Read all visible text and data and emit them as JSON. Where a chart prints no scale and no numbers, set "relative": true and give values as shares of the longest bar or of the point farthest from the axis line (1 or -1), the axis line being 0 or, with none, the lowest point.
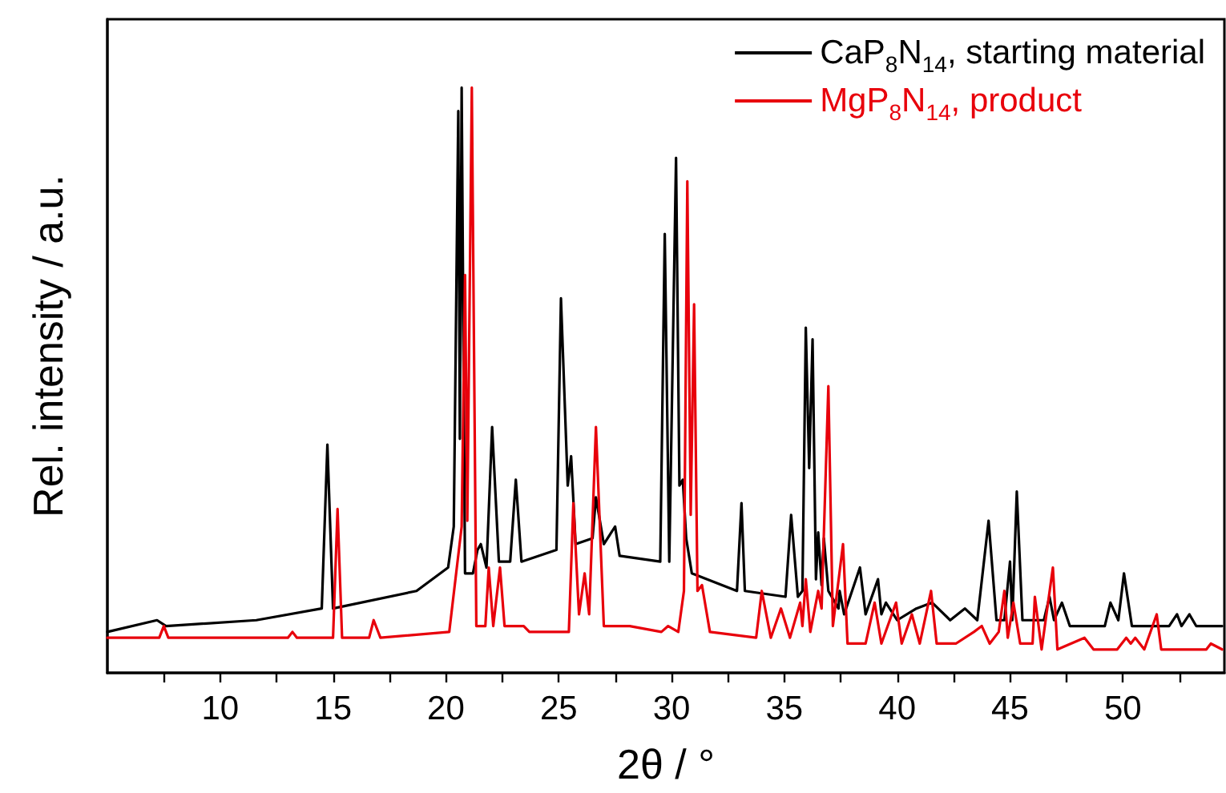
{
  "chart_data": {
    "type": "line",
    "relative": true,
    "xlabel": "2θ / °",
    "ylabel": "Rel. intensity / a.u.",
    "xlim": [
      5,
      54.5
    ],
    "xticks": [
      {
        "value": 7.5,
        "label": null
      },
      10,
      {
        "value": 12.5,
        "label": null
      },
      15,
      {
        "value": 17.5,
        "label": null
      },
      20,
      {
        "value": 22.5,
        "label": null
      },
      25,
      {
        "value": 27.5,
        "label": null
      },
      30,
      {
        "value": 32.5,
        "label": null
      },
      35,
      {
        "value": 37.5,
        "label": null
      },
      40,
      {
        "value": 42.5,
        "label": null
      },
      45,
      {
        "value": 47.5,
        "label": null
      },
      50,
      {
        "value": 52.5,
        "label": null
      }
    ],
    "legend": "top right",
    "marker": "none",
    "line_style": "solid",
    "grid": false,
    "series": [
      {
        "name": "CaP$_{8}$N$_{14}$, starting material",
        "color": "#000000",
        "x": [
          5.0,
          7.2,
          7.6,
          11.6,
          14.5,
          14.75,
          15.0,
          18.7,
          20.1,
          20.35,
          20.55,
          20.62,
          20.7,
          20.85,
          21.2,
          21.4,
          21.55,
          21.8,
          22.05,
          22.35,
          22.85,
          23.1,
          23.35,
          24.9,
          25.1,
          25.4,
          25.55,
          25.75,
          26.5,
          26.65,
          27.0,
          27.5,
          27.7,
          29.5,
          29.7,
          29.9,
          30.2,
          30.35,
          30.5,
          30.65,
          30.9,
          32.9,
          33.1,
          33.25,
          35.05,
          35.3,
          35.6,
          35.8,
          35.95,
          36.1,
          36.25,
          36.4,
          36.5,
          36.65,
          36.75,
          36.95,
          37.4,
          37.45,
          37.65,
          38.35,
          38.6,
          39.15,
          39.3,
          39.5,
          40.0,
          40.85,
          41.55,
          42.35,
          43.0,
          43.55,
          44.05,
          44.4,
          44.75,
          45.0,
          45.1,
          45.3,
          45.55,
          46.5,
          46.75,
          46.95,
          47.3,
          47.65,
          49.2,
          49.45,
          49.8,
          50.05,
          50.4,
          52.05,
          52.4,
          52.6,
          52.95,
          53.25,
          54.4
        ],
        "values": [
          0.07,
          0.09,
          0.08,
          0.09,
          0.11,
          0.39,
          0.11,
          0.14,
          0.18,
          0.25,
          0.96,
          0.4,
          1.0,
          0.17,
          0.17,
          0.21,
          0.22,
          0.18,
          0.42,
          0.19,
          0.19,
          0.33,
          0.19,
          0.21,
          0.64,
          0.32,
          0.37,
          0.22,
          0.23,
          0.3,
          0.22,
          0.25,
          0.2,
          0.19,
          0.75,
          0.19,
          0.88,
          0.32,
          0.33,
          0.23,
          0.17,
          0.14,
          0.29,
          0.14,
          0.13,
          0.27,
          0.13,
          0.14,
          0.59,
          0.35,
          0.57,
          0.16,
          0.24,
          0.15,
          0.23,
          0.14,
          0.11,
          0.14,
          0.1,
          0.18,
          0.1,
          0.16,
          0.1,
          0.12,
          0.09,
          0.11,
          0.12,
          0.09,
          0.11,
          0.09,
          0.26,
          0.09,
          0.09,
          0.19,
          0.09,
          0.31,
          0.09,
          0.09,
          0.13,
          0.09,
          0.12,
          0.08,
          0.08,
          0.12,
          0.09,
          0.17,
          0.08,
          0.08,
          0.1,
          0.08,
          0.1,
          0.08,
          0.08
        ]
      },
      {
        "name": "MgP$_{8}$N$_{14}$, product",
        "color": "#e8000b",
        "x": [
          5.0,
          7.3,
          7.5,
          7.7,
          13.0,
          13.2,
          13.4,
          15.0,
          15.2,
          15.4,
          16.6,
          16.8,
          17.1,
          20.15,
          20.7,
          20.85,
          20.95,
          21.15,
          21.35,
          21.75,
          21.9,
          22.1,
          22.4,
          22.6,
          23.45,
          23.7,
          25.45,
          25.65,
          25.9,
          26.15,
          26.35,
          26.65,
          27.0,
          28.15,
          29.55,
          29.85,
          30.3,
          30.55,
          30.7,
          30.85,
          31.0,
          31.15,
          31.35,
          31.7,
          33.75,
          34.0,
          34.4,
          34.85,
          35.25,
          35.7,
          35.8,
          35.95,
          36.15,
          36.5,
          36.65,
          36.95,
          37.15,
          37.6,
          37.8,
          38.6,
          39.0,
          39.3,
          39.95,
          40.2,
          40.65,
          41.0,
          41.5,
          41.75,
          42.35,
          42.6,
          43.4,
          43.75,
          44.1,
          44.5,
          44.75,
          44.9,
          45.15,
          45.45,
          46.0,
          46.1,
          46.4,
          46.9,
          47.1,
          48.3,
          48.7,
          49.75,
          50.15,
          50.35,
          50.55,
          50.95,
          51.5,
          51.7,
          53.7,
          53.9,
          54.4
        ],
        "values": [
          0.06,
          0.06,
          0.08,
          0.06,
          0.06,
          0.07,
          0.06,
          0.06,
          0.28,
          0.06,
          0.06,
          0.09,
          0.06,
          0.07,
          0.25,
          0.68,
          0.26,
          1.0,
          0.08,
          0.08,
          0.18,
          0.08,
          0.18,
          0.08,
          0.08,
          0.07,
          0.07,
          0.29,
          0.1,
          0.17,
          0.1,
          0.42,
          0.08,
          0.08,
          0.07,
          0.08,
          0.07,
          0.14,
          0.84,
          0.27,
          0.63,
          0.14,
          0.15,
          0.07,
          0.06,
          0.14,
          0.06,
          0.11,
          0.06,
          0.12,
          0.08,
          0.16,
          0.07,
          0.14,
          0.11,
          0.49,
          0.08,
          0.22,
          0.05,
          0.05,
          0.12,
          0.05,
          0.12,
          0.05,
          0.1,
          0.05,
          0.14,
          0.05,
          0.05,
          0.05,
          0.07,
          0.08,
          0.05,
          0.07,
          0.14,
          0.06,
          0.12,
          0.05,
          0.05,
          0.13,
          0.04,
          0.18,
          0.04,
          0.06,
          0.04,
          0.04,
          0.06,
          0.05,
          0.06,
          0.04,
          0.1,
          0.04,
          0.04,
          0.05,
          0.04
        ]
      }
    ]
  }
}
